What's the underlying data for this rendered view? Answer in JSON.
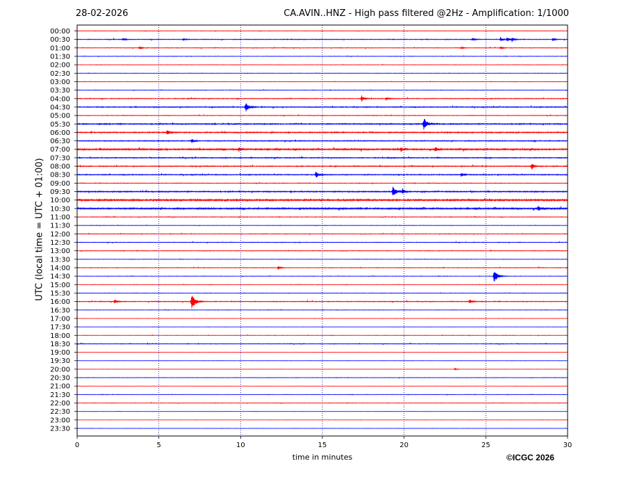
{
  "header": {
    "date": "28-02-2026",
    "title": "CA.AVIN..HNZ - High pass filtered @2Hz - Amplification: 1/1000"
  },
  "footer": {
    "copyright": "©ICGC 2026"
  },
  "colors": {
    "odd_trace": "#ff0000",
    "even_trace": "#0000ff",
    "grid": "#000080",
    "axis": "#000000"
  },
  "chart_data": {
    "type": "line",
    "title": "CA.AVIN..HNZ - High pass filtered @2Hz - Amplification: 1/1000",
    "xlabel": "time in minutes",
    "ylabel": "UTC (local time = UTC + 01:00)",
    "xlim": [
      0,
      30
    ],
    "xticks": [
      0,
      5,
      10,
      15,
      20,
      25,
      30
    ],
    "grid": "vertical dotted at x ticks",
    "trace_colors": [
      "red",
      "blue"
    ],
    "rows": [
      "00:00",
      "00:30",
      "01:00",
      "01:30",
      "02:00",
      "02:30",
      "03:00",
      "03:30",
      "04:00",
      "04:30",
      "05:00",
      "05:30",
      "06:00",
      "06:30",
      "07:00",
      "07:30",
      "08:00",
      "08:30",
      "09:00",
      "09:30",
      "10:00",
      "10:30",
      "11:00",
      "11:30",
      "12:00",
      "12:30",
      "13:00",
      "13:30",
      "14:00",
      "14:30",
      "15:00",
      "15:30",
      "16:00",
      "16:30",
      "17:00",
      "17:30",
      "18:00",
      "18:30",
      "19:00",
      "19:30",
      "20:00",
      "20:30",
      "21:00",
      "21:30",
      "22:00",
      "22:30",
      "23:00",
      "23:30"
    ],
    "noise": [
      0.2,
      0.35,
      0.3,
      0.2,
      0.2,
      0.2,
      0.2,
      0.2,
      0.4,
      0.5,
      0.3,
      0.6,
      0.6,
      0.5,
      0.8,
      0.5,
      0.5,
      0.5,
      0.3,
      0.6,
      0.9,
      0.8,
      0.3,
      0.2,
      0.3,
      0.3,
      0.3,
      0.2,
      0.3,
      0.2,
      0.2,
      0.2,
      0.4,
      0.2,
      0.1,
      0.1,
      0.2,
      0.3,
      0.1,
      0.1,
      0.1,
      0.2,
      0.1,
      0.2,
      0.2,
      0.1,
      0.1,
      0.1
    ],
    "events": [
      {
        "row": "00:30",
        "t": 2.8,
        "amp": 2
      },
      {
        "row": "00:30",
        "t": 6.5,
        "amp": 1.5
      },
      {
        "row": "00:30",
        "t": 24.2,
        "amp": 2
      },
      {
        "row": "00:30",
        "t": 25.9,
        "amp": 3
      },
      {
        "row": "00:30",
        "t": 26.3,
        "amp": 3.5
      },
      {
        "row": "00:30",
        "t": 26.6,
        "amp": 3
      },
      {
        "row": "00:30",
        "t": 29.1,
        "amp": 2
      },
      {
        "row": "01:00",
        "t": 3.8,
        "amp": 2
      },
      {
        "row": "01:00",
        "t": 23.5,
        "amp": 1.5
      },
      {
        "row": "01:00",
        "t": 25.9,
        "amp": 2
      },
      {
        "row": "04:00",
        "t": 17.4,
        "amp": 5
      },
      {
        "row": "04:00",
        "t": 18.9,
        "amp": 2.5
      },
      {
        "row": "04:30",
        "t": 10.3,
        "amp": 7
      },
      {
        "row": "05:30",
        "t": 21.2,
        "amp": 10
      },
      {
        "row": "06:00",
        "t": 5.5,
        "amp": 5
      },
      {
        "row": "06:30",
        "t": 7.0,
        "amp": 3.5
      },
      {
        "row": "07:00",
        "t": 9.9,
        "amp": 3
      },
      {
        "row": "07:00",
        "t": 19.8,
        "amp": 3
      },
      {
        "row": "07:00",
        "t": 21.9,
        "amp": 3
      },
      {
        "row": "08:00",
        "t": 27.8,
        "amp": 5
      },
      {
        "row": "08:30",
        "t": 14.6,
        "amp": 6
      },
      {
        "row": "08:30",
        "t": 23.5,
        "amp": 3.5
      },
      {
        "row": "09:30",
        "t": 19.3,
        "amp": 8
      },
      {
        "row": "09:30",
        "t": 19.9,
        "amp": 5
      },
      {
        "row": "10:30",
        "t": 28.2,
        "amp": 4
      },
      {
        "row": "14:00",
        "t": 12.3,
        "amp": 3
      },
      {
        "row": "14:30",
        "t": 25.5,
        "amp": 11
      },
      {
        "row": "16:00",
        "t": 2.3,
        "amp": 3
      },
      {
        "row": "16:00",
        "t": 7.0,
        "amp": 14
      },
      {
        "row": "16:00",
        "t": 24.0,
        "amp": 3.5
      },
      {
        "row": "20:00",
        "t": 23.1,
        "amp": 1.5
      }
    ]
  }
}
